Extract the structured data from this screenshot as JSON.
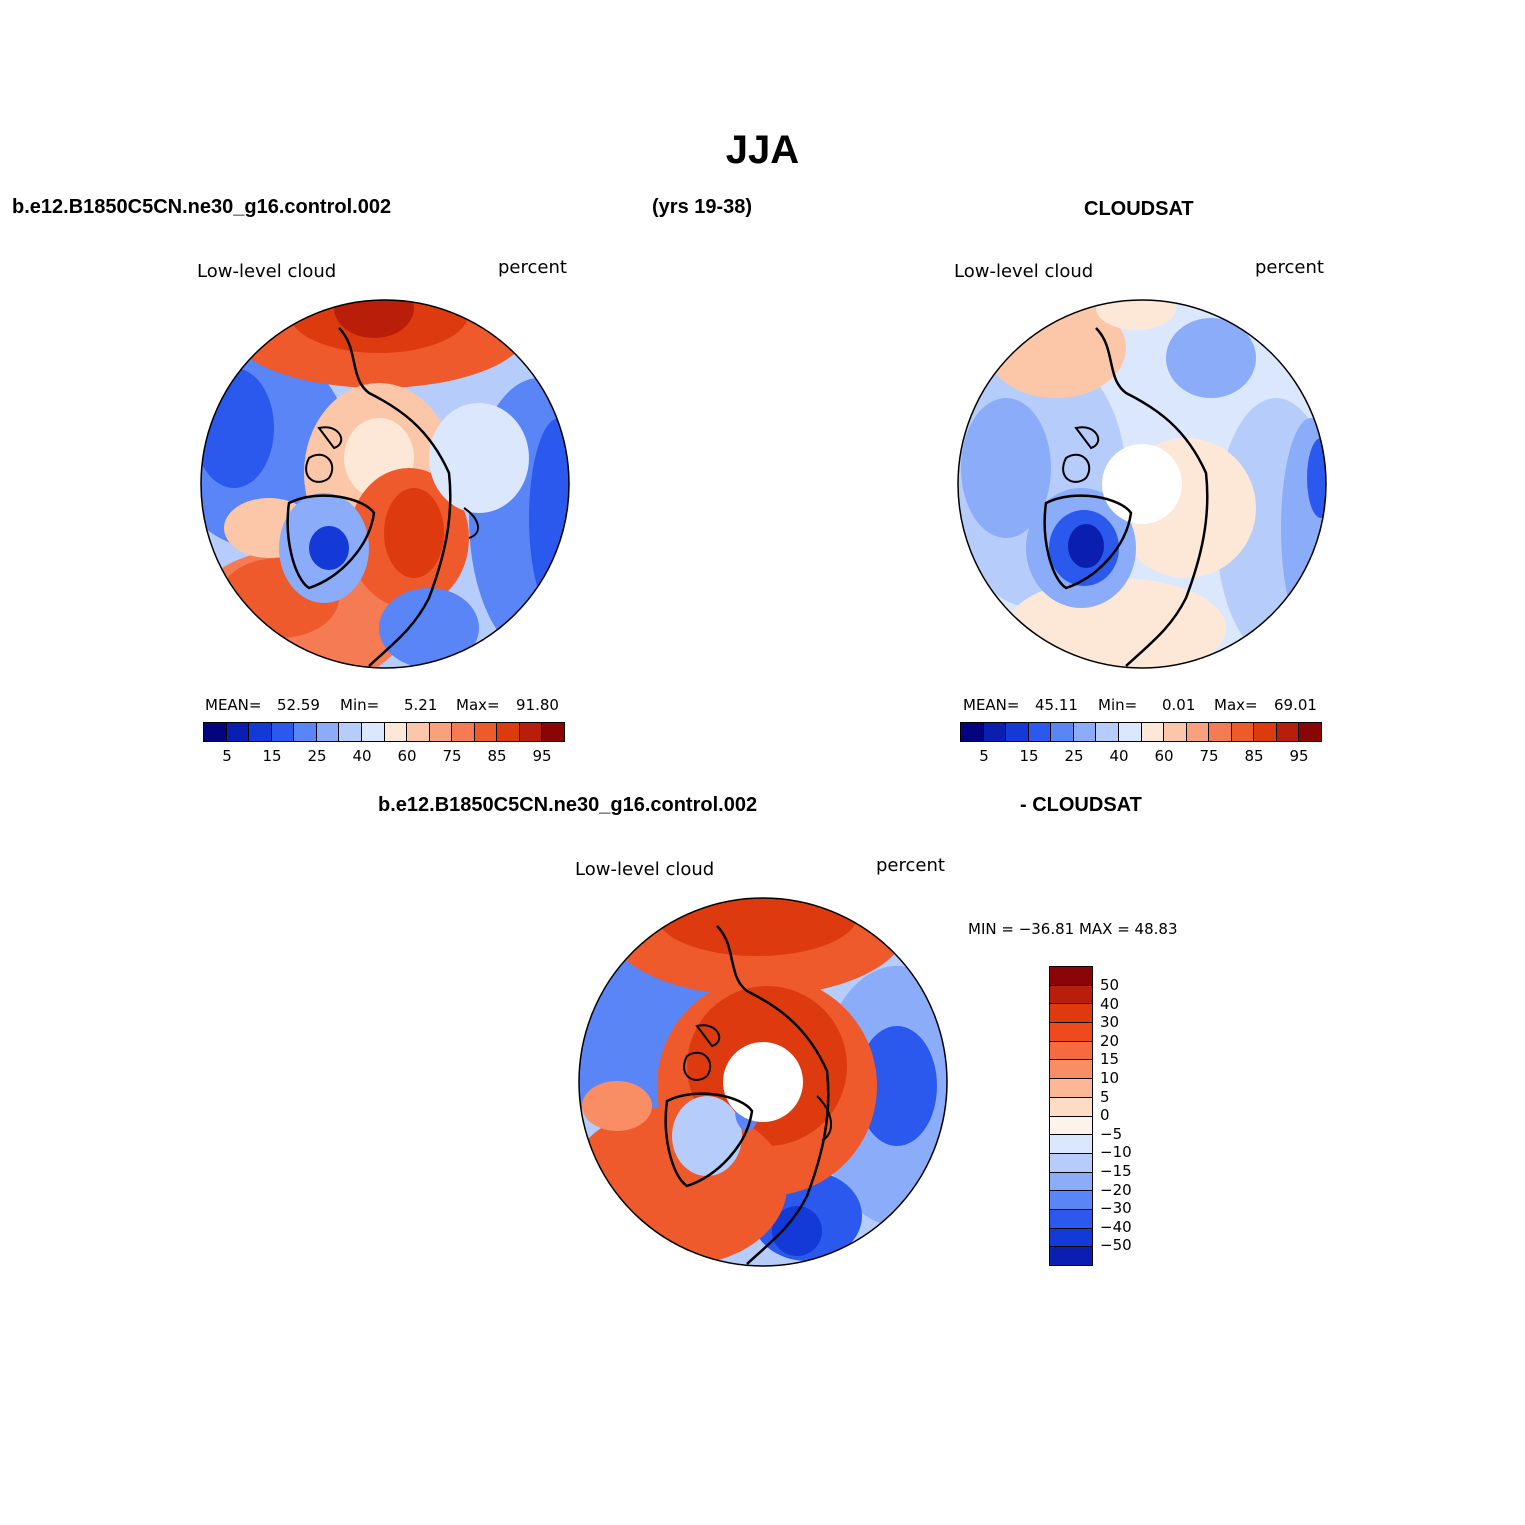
{
  "title": "JJA",
  "header": {
    "case_name": "b.e12.B1850C5CN.ne30_g16.control.002",
    "years": "(yrs 19-38)",
    "obs_name": "CLOUDSAT"
  },
  "diff_header": {
    "case_name": "b.e12.B1850C5CN.ne30_g16.control.002",
    "obs_name": "- CLOUDSAT"
  },
  "panels": {
    "model": {
      "variable": "Low-level cloud",
      "units": "percent",
      "mean_label": "MEAN=",
      "mean": "52.59",
      "min_label": "Min=",
      "min": "5.21",
      "max_label": "Max=",
      "max": "91.80"
    },
    "obs": {
      "variable": "Low-level cloud",
      "units": "percent",
      "mean_label": "MEAN=",
      "mean": "45.11",
      "min_label": "Min=",
      "min": "0.01",
      "max_label": "Max=",
      "max": "69.01"
    },
    "diff": {
      "variable": "Low-level cloud",
      "units": "percent",
      "minmax_text": "MIN = −36.81  MAX =   48.83"
    }
  },
  "colorbar_abs": {
    "colors": [
      "#05047f",
      "#0a1fb0",
      "#1339d6",
      "#2b59ee",
      "#5a85f7",
      "#8aacf9",
      "#b6cdfb",
      "#dbe7fd",
      "#fde8d8",
      "#fcc7a8",
      "#f9a07c",
      "#f57b55",
      "#ee5a2c",
      "#dd3a10",
      "#b81e0a",
      "#8a0606"
    ],
    "ticks": [
      "5",
      "15",
      "25",
      "40",
      "60",
      "75",
      "85",
      "95"
    ]
  },
  "colorbar_diff": {
    "colors": [
      "#8a0606",
      "#b81e0a",
      "#dd3a10",
      "#ee4a1e",
      "#f56a3e",
      "#f98e64",
      "#fcb896",
      "#fddcc4",
      "#fdf3ea",
      "#dbe7fd",
      "#b6cdfb",
      "#8aacf9",
      "#5a85f7",
      "#2b59ee",
      "#1339d6",
      "#0a1fb0"
    ],
    "ticks": [
      "50",
      "40",
      "30",
      "20",
      "15",
      "10",
      "5",
      "0",
      "−5",
      "−10",
      "−15",
      "−20",
      "−30",
      "−40",
      "−50"
    ]
  }
}
